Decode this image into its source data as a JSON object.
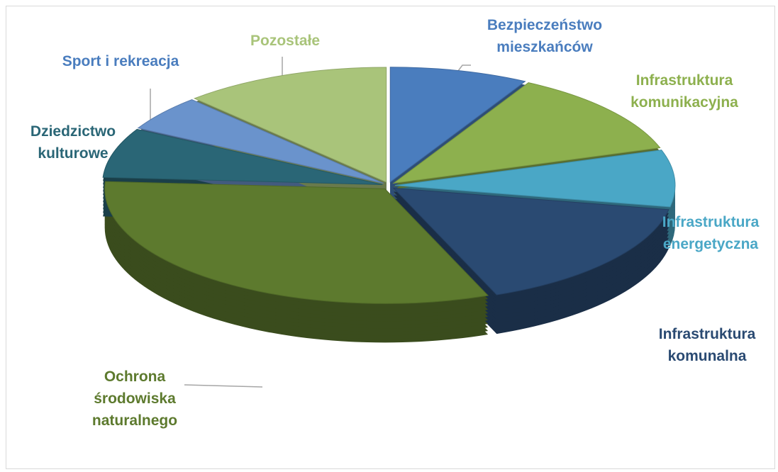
{
  "chart_data": {
    "type": "pie3d",
    "categories": [
      "Bezpieczeństwo mieszkańców",
      "Infrastruktura komunikacyjna",
      "Infrastruktura energetyczna",
      "Infrastruktura komunalna",
      "Ochrona środowiska naturalnego",
      "Dziedzictwo kulturowe",
      "Sport i rekreacja",
      "Pozostałe"
    ],
    "values": [
      8,
      12,
      8,
      16,
      32,
      7,
      5,
      12
    ],
    "colors": [
      "#4a7dbe",
      "#8db04e",
      "#4aa7c6",
      "#2a4a72",
      "#5d7a2e",
      "#2a6676",
      "#6a93cc",
      "#a9c47a"
    ],
    "label_colors": [
      "#4a7dbe",
      "#8db04e",
      "#4aa7c6",
      "#2a4a72",
      "#5d7a2e",
      "#2a6676",
      "#4a7dbe",
      "#a9c47a"
    ]
  }
}
